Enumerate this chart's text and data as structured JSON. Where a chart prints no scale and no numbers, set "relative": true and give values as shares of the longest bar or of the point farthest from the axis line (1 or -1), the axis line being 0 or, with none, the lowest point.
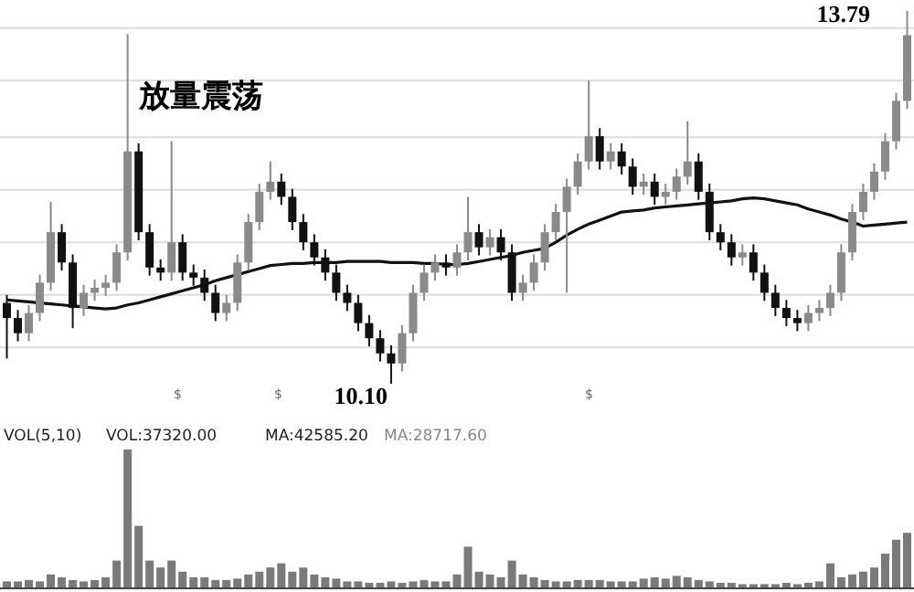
{
  "chart_data": [
    {
      "type": "candlestick",
      "categories": [
        null,
        null,
        null,
        null,
        null,
        null,
        null,
        null,
        null,
        null,
        null,
        null,
        null,
        null,
        null,
        null,
        null,
        null,
        null,
        null,
        null,
        null,
        null,
        null,
        null,
        null,
        null,
        null,
        null,
        null,
        null,
        null,
        null,
        null,
        null,
        null,
        null,
        null,
        null,
        null,
        null,
        null,
        null,
        null,
        null,
        null,
        null,
        null,
        null,
        null,
        null,
        null,
        null,
        null,
        null,
        null,
        null,
        null,
        null,
        null,
        null,
        null,
        null,
        null,
        null,
        null,
        null,
        null,
        null,
        null,
        null,
        null,
        null,
        null,
        null,
        null,
        null,
        null,
        null,
        null,
        null,
        null,
        null
      ],
      "ohlc": [
        [
          10.9,
          10.98,
          10.35,
          10.75
        ],
        [
          10.75,
          10.83,
          10.52,
          10.6
        ],
        [
          10.6,
          10.88,
          10.52,
          10.8
        ],
        [
          10.8,
          11.18,
          10.72,
          11.1
        ],
        [
          11.1,
          11.9,
          11.02,
          11.6
        ],
        [
          11.6,
          11.68,
          11.22,
          11.3
        ],
        [
          11.3,
          11.38,
          10.65,
          10.85
        ],
        [
          10.85,
          11.08,
          10.77,
          11.0
        ],
        [
          11.0,
          11.13,
          10.92,
          11.05
        ],
        [
          11.05,
          11.18,
          10.97,
          11.1
        ],
        [
          11.1,
          11.48,
          11.02,
          11.4
        ],
        [
          11.4,
          13.56,
          11.32,
          12.4
        ],
        [
          12.4,
          12.48,
          11.52,
          11.6
        ],
        [
          11.6,
          11.68,
          11.17,
          11.25
        ],
        [
          11.25,
          11.33,
          11.12,
          11.2
        ],
        [
          11.2,
          12.5,
          11.12,
          11.5
        ],
        [
          11.5,
          11.58,
          11.12,
          11.2
        ],
        [
          11.2,
          11.28,
          11.07,
          11.15
        ],
        [
          11.15,
          11.23,
          10.92,
          11.0
        ],
        [
          11.0,
          11.08,
          10.72,
          10.8
        ],
        [
          10.8,
          10.98,
          10.72,
          10.9
        ],
        [
          10.9,
          11.38,
          10.82,
          11.3
        ],
        [
          11.3,
          11.78,
          11.22,
          11.7
        ],
        [
          11.7,
          12.08,
          11.62,
          12.0
        ],
        [
          12.0,
          12.3,
          11.92,
          12.1
        ],
        [
          12.1,
          12.18,
          11.87,
          11.95
        ],
        [
          11.95,
          12.03,
          11.62,
          11.7
        ],
        [
          11.7,
          11.78,
          11.42,
          11.5
        ],
        [
          11.5,
          11.58,
          11.27,
          11.35
        ],
        [
          11.35,
          11.43,
          11.12,
          11.2
        ],
        [
          11.2,
          11.28,
          10.92,
          11.0
        ],
        [
          11.0,
          11.08,
          10.82,
          10.9
        ],
        [
          10.9,
          10.98,
          10.62,
          10.7
        ],
        [
          10.7,
          10.78,
          10.47,
          10.55
        ],
        [
          10.55,
          10.63,
          10.32,
          10.4
        ],
        [
          10.4,
          10.48,
          10.1,
          10.3
        ],
        [
          10.3,
          10.68,
          10.22,
          10.6
        ],
        [
          10.6,
          11.08,
          10.52,
          11.0
        ],
        [
          11.0,
          11.28,
          10.92,
          11.2
        ],
        [
          11.2,
          11.38,
          11.12,
          11.3
        ],
        [
          11.3,
          11.38,
          11.17,
          11.25
        ],
        [
          11.25,
          11.48,
          11.17,
          11.4
        ],
        [
          11.4,
          11.95,
          11.32,
          11.6
        ],
        [
          11.6,
          11.68,
          11.37,
          11.45
        ],
        [
          11.45,
          11.63,
          11.37,
          11.55
        ],
        [
          11.55,
          11.63,
          11.32,
          11.4
        ],
        [
          11.4,
          11.48,
          10.92,
          11.0
        ],
        [
          11.0,
          11.18,
          10.92,
          11.1
        ],
        [
          11.1,
          11.38,
          11.02,
          11.3
        ],
        [
          11.3,
          11.68,
          11.22,
          11.6
        ],
        [
          11.6,
          11.88,
          11.52,
          11.8
        ],
        [
          11.8,
          12.13,
          11.0,
          12.05
        ],
        [
          12.05,
          12.38,
          11.97,
          12.3
        ],
        [
          12.3,
          13.1,
          12.22,
          12.55
        ],
        [
          12.55,
          12.63,
          12.22,
          12.3
        ],
        [
          12.3,
          12.48,
          12.22,
          12.4
        ],
        [
          12.4,
          12.48,
          12.17,
          12.25
        ],
        [
          12.25,
          12.33,
          11.97,
          12.05
        ],
        [
          12.05,
          12.18,
          11.97,
          12.1
        ],
        [
          12.1,
          12.18,
          11.87,
          11.95
        ],
        [
          11.95,
          12.08,
          11.87,
          12.0
        ],
        [
          12.0,
          12.23,
          11.92,
          12.15
        ],
        [
          12.15,
          12.7,
          12.07,
          12.3
        ],
        [
          12.3,
          12.38,
          11.92,
          12.0
        ],
        [
          12.0,
          12.08,
          11.52,
          11.6
        ],
        [
          11.6,
          11.68,
          11.42,
          11.5
        ],
        [
          11.5,
          11.58,
          11.27,
          11.35
        ],
        [
          11.35,
          11.48,
          11.27,
          11.4
        ],
        [
          11.4,
          11.48,
          11.12,
          11.2
        ],
        [
          11.2,
          11.28,
          10.92,
          11.0
        ],
        [
          11.0,
          11.08,
          10.77,
          10.85
        ],
        [
          10.85,
          10.93,
          10.67,
          10.75
        ],
        [
          10.75,
          10.83,
          10.62,
          10.7
        ],
        [
          10.7,
          10.88,
          10.62,
          10.8
        ],
        [
          10.8,
          10.93,
          10.72,
          10.85
        ],
        [
          10.85,
          11.08,
          10.77,
          11.0
        ],
        [
          11.0,
          11.48,
          10.92,
          11.4
        ],
        [
          11.4,
          11.88,
          11.32,
          11.8
        ],
        [
          11.8,
          12.08,
          11.72,
          12.0
        ],
        [
          12.0,
          12.28,
          11.92,
          12.2
        ],
        [
          12.2,
          12.58,
          12.12,
          12.5
        ],
        [
          12.5,
          12.98,
          12.42,
          12.9
        ],
        [
          12.9,
          13.79,
          12.82,
          13.55
        ]
      ],
      "series": [
        {
          "type": "line",
          "color": "#111111",
          "values": [
            10.93,
            10.92,
            10.91,
            10.9,
            10.89,
            10.88,
            10.87,
            10.86,
            10.85,
            10.84,
            10.85,
            10.88,
            10.9,
            10.93,
            10.96,
            10.99,
            11.02,
            11.05,
            11.08,
            11.12,
            11.15,
            11.18,
            11.21,
            11.24,
            11.27,
            11.28,
            11.29,
            11.29,
            11.3,
            11.3,
            11.3,
            11.31,
            11.31,
            11.31,
            11.31,
            11.3,
            11.3,
            11.3,
            11.29,
            11.29,
            11.28,
            11.28,
            11.29,
            11.31,
            11.33,
            11.35,
            11.37,
            11.4,
            11.42,
            11.44,
            11.5,
            11.57,
            11.63,
            11.68,
            11.72,
            11.76,
            11.8,
            11.81,
            11.82,
            11.84,
            11.85,
            11.86,
            11.87,
            11.88,
            11.89,
            11.9,
            11.91,
            11.93,
            11.94,
            11.93,
            11.91,
            11.89,
            11.87,
            11.83,
            11.8,
            11.77,
            11.73,
            11.7,
            11.66,
            11.67,
            11.68,
            11.69,
            11.7
          ]
        }
      ],
      "yticks": [
        {
          "value": 10.46,
          "label": null
        },
        {
          "value": 10.98,
          "label": null
        },
        {
          "value": 11.5,
          "label": null
        },
        {
          "value": 12.02,
          "label": null
        },
        {
          "value": 12.54,
          "label": null
        },
        {
          "value": 13.1,
          "label": null
        },
        {
          "value": 13.62,
          "label": null
        }
      ],
      "grid": "y",
      "annotations": [
        "放量震荡",
        "13.79",
        "10.10",
        "$",
        "$",
        "$"
      ]
    },
    {
      "type": "bar",
      "relative": true,
      "color": "#7a7a7a",
      "categories": [
        null,
        null,
        null,
        null,
        null,
        null,
        null,
        null,
        null,
        null,
        null,
        null,
        null,
        null,
        null,
        null,
        null,
        null,
        null,
        null,
        null,
        null,
        null,
        null,
        null,
        null,
        null,
        null,
        null,
        null,
        null,
        null,
        null,
        null,
        null,
        null,
        null,
        null,
        null,
        null,
        null,
        null,
        null,
        null,
        null,
        null,
        null,
        null,
        null,
        null,
        null,
        null,
        null,
        null,
        null,
        null,
        null,
        null,
        null,
        null,
        null,
        null,
        null,
        null,
        null,
        null,
        null,
        null,
        null,
        null,
        null,
        null,
        null,
        null,
        null,
        null,
        null,
        null,
        null,
        null,
        null,
        null,
        null
      ],
      "values": [
        0.05,
        0.05,
        0.06,
        0.05,
        0.1,
        0.08,
        0.06,
        0.05,
        0.06,
        0.08,
        0.2,
        1,
        0.45,
        0.2,
        0.15,
        0.2,
        0.12,
        0.08,
        0.08,
        0.06,
        0.06,
        0.07,
        0.1,
        0.12,
        0.15,
        0.18,
        0.12,
        0.15,
        0.1,
        0.08,
        0.07,
        0.05,
        0.05,
        0.04,
        0.04,
        0.05,
        0.04,
        0.05,
        0.06,
        0.05,
        0.05,
        0.1,
        0.3,
        0.12,
        0.1,
        0.08,
        0.2,
        0.1,
        0.08,
        0.06,
        0.05,
        0.05,
        0.06,
        0.06,
        0.06,
        0.05,
        0.05,
        0.05,
        0.07,
        0.08,
        0.07,
        0.09,
        0.08,
        0.06,
        0.05,
        0.04,
        0.04,
        0.03,
        0.03,
        0.03,
        0.03,
        0.04,
        0.03,
        0.04,
        0.05,
        0.18,
        0.08,
        0.1,
        0.12,
        0.15,
        0.25,
        0.35,
        0.4
      ],
      "annotations": [
        "VOL(5,10)",
        "VOL:37320.00",
        "MA:42585.20",
        "MA:28717.60"
      ]
    }
  ]
}
